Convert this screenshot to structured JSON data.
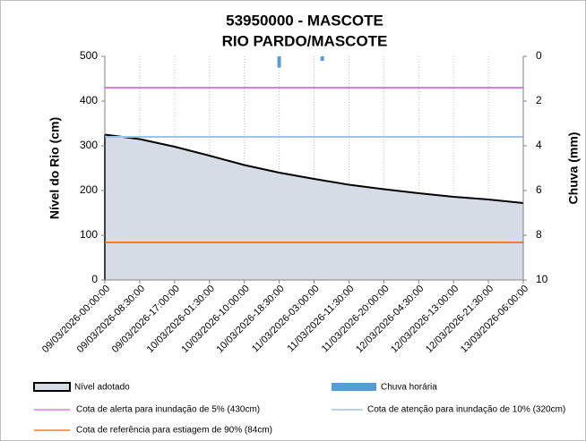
{
  "chart_data": {
    "type": "area",
    "title": "53950000 - MASCOTE",
    "subtitle": "RIO PARDO/MASCOTE",
    "ylabel": "Nível do Rio (cm)",
    "y2label": "Chuva (mm)",
    "categories": [
      "09/03/2026-00:00:00",
      "09/03/2026-08:30:00",
      "09/03/2026-17:00:00",
      "10/03/2026-01:30:00",
      "10/03/2026-10:00:00",
      "10/03/2026-18:30:00",
      "11/03/2026-03:00:00",
      "11/03/2026-11:30:00",
      "11/03/2026-20:00:00",
      "12/03/2026-04:30:00",
      "12/03/2026-13:00:00",
      "12/03/2026-21:30:00",
      "13/03/2026-06:00:00"
    ],
    "series": [
      {
        "name": "Nível adotado",
        "color": "#d6dce5",
        "values": [
          325,
          315,
          298,
          278,
          257,
          240,
          226,
          213,
          203,
          194,
          186,
          180,
          172
        ]
      }
    ],
    "rain": {
      "name": "Chuva horária",
      "color": "#5b9bd5",
      "axis": "y2",
      "x": [
        "10/03/2026-18:30:00",
        "11/03/2026-05:00:00"
      ],
      "values": [
        0.5,
        0.2
      ]
    },
    "thresholds": [
      {
        "name": "Cota de alerta para inundação de 5% (430cm)",
        "value": 430,
        "color": "#e07be0"
      },
      {
        "name": "Cota de atenção para inundação de 10% (320cm)",
        "value": 320,
        "color": "#9dc3e6"
      },
      {
        "name": "Cota de referência para estiagem de 90% (84cm)",
        "value": 84,
        "color": "#ed7d31"
      }
    ],
    "ylim": [
      0,
      500
    ],
    "yticks": [
      0,
      100,
      200,
      300,
      400,
      500
    ],
    "y2lim": [
      0,
      10
    ],
    "y2ticks": [
      0,
      2,
      4,
      6,
      8,
      10
    ],
    "y2_inverted": true,
    "xgrid": true
  }
}
